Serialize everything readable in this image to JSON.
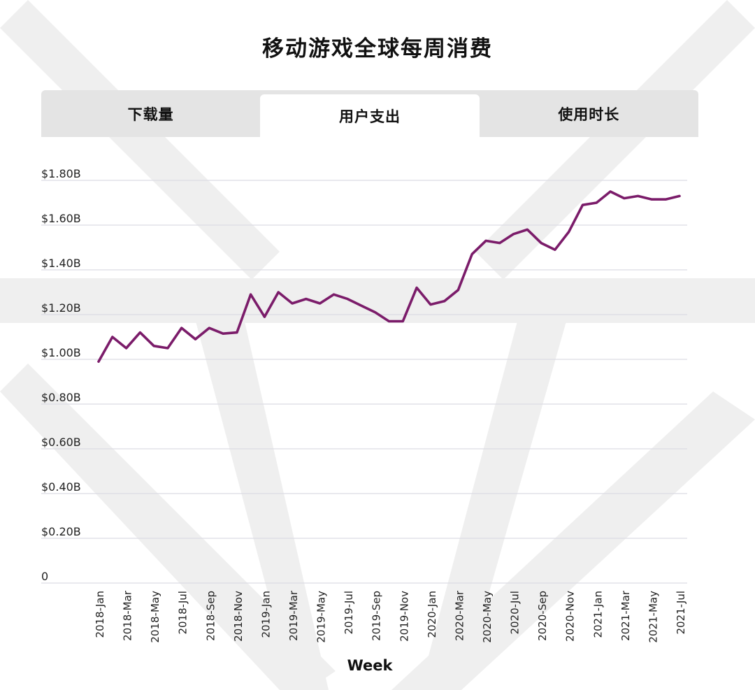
{
  "header": {
    "title": "移动游戏全球每周消费"
  },
  "tabs": [
    {
      "label": "下载量",
      "active": false
    },
    {
      "label": "用户支出",
      "active": true
    },
    {
      "label": "使用时长",
      "active": false
    }
  ],
  "colors": {
    "line": "#7b1c6a",
    "grid": "#dcdce4",
    "tab_bg": "#e4e4e4",
    "watermark": "#efefef"
  },
  "chart_data": {
    "type": "line",
    "xlabel": "Week",
    "ylabel": "",
    "ylim": [
      0,
      1800000000
    ],
    "y_ticks": [
      {
        "value": 0,
        "label": "0"
      },
      {
        "value": 200000000,
        "label": "$0.20B"
      },
      {
        "value": 400000000,
        "label": "$0.40B"
      },
      {
        "value": 600000000,
        "label": "$0.60B"
      },
      {
        "value": 800000000,
        "label": "$0.80B"
      },
      {
        "value": 1000000000,
        "label": "$1.00B"
      },
      {
        "value": 1200000000,
        "label": "$1.20B"
      },
      {
        "value": 1400000000,
        "label": "$1.40B"
      },
      {
        "value": 1600000000,
        "label": "$1.60B"
      },
      {
        "value": 1800000000,
        "label": "$1.80B"
      }
    ],
    "x_tick_labels": [
      "2018-Jan",
      "2018-Mar",
      "2018-May",
      "2018-Jul",
      "2018-Sep",
      "2018-Nov",
      "2019-Jan",
      "2019-Mar",
      "2019-May",
      "2019-Jul",
      "2019-Sep",
      "2019-Nov",
      "2020-Jan",
      "2020-Mar",
      "2020-May",
      "2020-Jul",
      "2020-Sep",
      "2020-Nov",
      "2021-Jan",
      "2021-Mar",
      "2021-May",
      "2021-Jul"
    ],
    "grid": true,
    "series": [
      {
        "values": [
          0.99,
          1.1,
          1.05,
          1.12,
          1.06,
          1.05,
          1.14,
          1.09,
          1.14,
          1.115,
          1.12,
          1.29,
          1.19,
          1.3,
          1.25,
          1.27,
          1.25,
          1.29,
          1.27,
          1.24,
          1.21,
          1.17,
          1.17,
          1.32,
          1.245,
          1.26,
          1.31,
          1.47,
          1.53,
          1.52,
          1.56,
          1.58,
          1.52,
          1.49,
          1.57,
          1.69,
          1.7,
          1.75,
          1.72,
          1.73,
          1.715,
          1.715,
          1.73
        ],
        "unit": "billion USD"
      }
    ]
  }
}
